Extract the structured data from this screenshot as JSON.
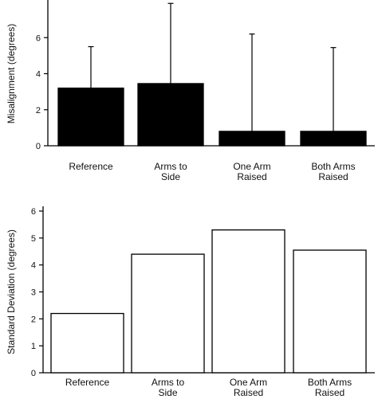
{
  "chart_data": [
    {
      "type": "bar",
      "categories": [
        [
          "Reference"
        ],
        [
          "Arms to",
          "Side"
        ],
        [
          "One Arm",
          "Raised"
        ],
        [
          "Both Arms",
          "Raised"
        ]
      ],
      "values": [
        3.2,
        3.45,
        0.8,
        0.8
      ],
      "error_upper": [
        5.5,
        7.9,
        6.2,
        5.45
      ],
      "ylabel": "Misalignment (degrees)",
      "yticks": [
        0,
        2,
        4,
        6
      ],
      "ylim": [
        0,
        8
      ],
      "bar_fill": "#000000",
      "grid": false
    },
    {
      "type": "bar",
      "categories": [
        [
          "Reference"
        ],
        [
          "Arms to",
          "Side"
        ],
        [
          "One Arm",
          "Raised"
        ],
        [
          "Both Arms",
          "Raised"
        ]
      ],
      "values": [
        2.2,
        4.4,
        5.3,
        4.55
      ],
      "ylabel": "Standard Deviation (degrees)",
      "yticks": [
        0,
        1,
        2,
        3,
        4,
        5,
        6
      ],
      "ylim": [
        0,
        6
      ],
      "bar_fill": "#ffffff",
      "grid": false
    }
  ]
}
